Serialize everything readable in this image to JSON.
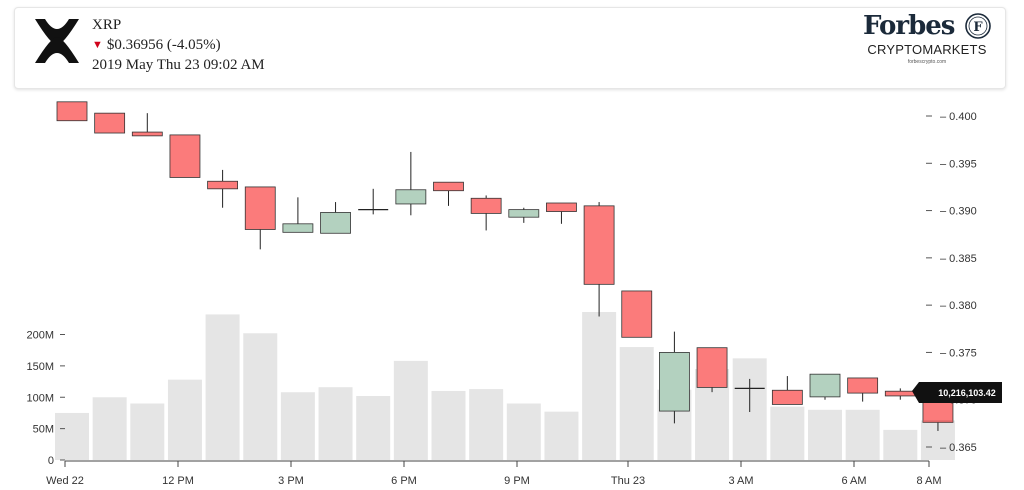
{
  "header": {
    "coin": "XRP",
    "price_arrow": "▼",
    "price": "$0.36956 (-4.05%)",
    "datetime": "2019 May Thu 23 09:02 AM",
    "logo_icon": "xrp-logo-icon"
  },
  "brand": {
    "name": "Forbes",
    "seal_letter": "F",
    "sub": "CRYPTOMARKETS",
    "url": "forbescrypto.com"
  },
  "colors": {
    "up": "#b3d1bf",
    "down": "#fb7b7b",
    "volume": "#e5e5e5",
    "wick": "#222222",
    "callout": "#111111"
  },
  "chart_data": {
    "type": "candlestick",
    "price_axis": {
      "ticks": [
        "0.400",
        "0.395",
        "0.390",
        "0.385",
        "0.380",
        "0.375",
        "0.370",
        "0.365"
      ],
      "ylim": [
        0.3635,
        0.4015
      ]
    },
    "volume_axis": {
      "ticks": [
        "200M",
        "150M",
        "100M",
        "50M",
        "0"
      ],
      "ylim": [
        0,
        235
      ]
    },
    "x_ticks": [
      "Wed 22",
      "12 PM",
      "3 PM",
      "6 PM",
      "9 PM",
      "Thu 23",
      "3 AM",
      "6 AM",
      "8 AM"
    ],
    "candles": [
      {
        "o": 0.4015,
        "h": 0.4015,
        "l": 0.3995,
        "c": 0.3995,
        "v": 75
      },
      {
        "o": 0.4003,
        "h": 0.4003,
        "l": 0.3982,
        "c": 0.3982,
        "v": 100
      },
      {
        "o": 0.3983,
        "h": 0.4003,
        "l": 0.3979,
        "c": 0.3979,
        "v": 90
      },
      {
        "o": 0.398,
        "h": 0.398,
        "l": 0.3935,
        "c": 0.3935,
        "v": 128
      },
      {
        "o": 0.3931,
        "h": 0.3943,
        "l": 0.3903,
        "c": 0.3923,
        "v": 232
      },
      {
        "o": 0.3925,
        "h": 0.3925,
        "l": 0.3859,
        "c": 0.388,
        "v": 202
      },
      {
        "o": 0.3877,
        "h": 0.3914,
        "l": 0.3877,
        "c": 0.3886,
        "v": 108
      },
      {
        "o": 0.3876,
        "h": 0.3909,
        "l": 0.3876,
        "c": 0.3898,
        "v": 116
      },
      {
        "o": 0.39,
        "h": 0.3923,
        "l": 0.3896,
        "c": 0.3901,
        "v": 102
      },
      {
        "o": 0.3907,
        "h": 0.3962,
        "l": 0.3895,
        "c": 0.3922,
        "v": 158
      },
      {
        "o": 0.393,
        "h": 0.393,
        "l": 0.3905,
        "c": 0.3921,
        "v": 110
      },
      {
        "o": 0.3913,
        "h": 0.3916,
        "l": 0.3879,
        "c": 0.3897,
        "v": 113
      },
      {
        "o": 0.3893,
        "h": 0.3903,
        "l": 0.3887,
        "c": 0.3901,
        "v": 90
      },
      {
        "o": 0.3908,
        "h": 0.3908,
        "l": 0.3886,
        "c": 0.3899,
        "v": 77
      },
      {
        "o": 0.3905,
        "h": 0.3909,
        "l": 0.3788,
        "c": 0.3822,
        "v": 243
      },
      {
        "o": 0.3815,
        "h": 0.3815,
        "l": 0.3766,
        "c": 0.3766,
        "v": 180
      },
      {
        "o": 0.3688,
        "h": 0.3772,
        "l": 0.3675,
        "c": 0.375,
        "v": 112
      },
      {
        "o": 0.3755,
        "h": 0.3755,
        "l": 0.3708,
        "c": 0.3713,
        "v": 145
      },
      {
        "o": 0.3712,
        "h": 0.3722,
        "l": 0.3687,
        "c": 0.3712,
        "v": 162
      },
      {
        "o": 0.371,
        "h": 0.3725,
        "l": 0.3695,
        "c": 0.3695,
        "v": 85
      },
      {
        "o": 0.3703,
        "h": 0.3727,
        "l": 0.37,
        "c": 0.3727,
        "v": 80
      },
      {
        "o": 0.3723,
        "h": 0.3723,
        "l": 0.3698,
        "c": 0.3707,
        "v": 80
      },
      {
        "o": 0.3709,
        "h": 0.3712,
        "l": 0.37,
        "c": 0.3704,
        "v": 48
      },
      {
        "o": 0.3709,
        "h": 0.3709,
        "l": 0.3667,
        "c": 0.3676,
        "v": 63
      }
    ],
    "overlay_volume_at_first_drop": 178,
    "last_volume_label": "10,216,103.42"
  }
}
